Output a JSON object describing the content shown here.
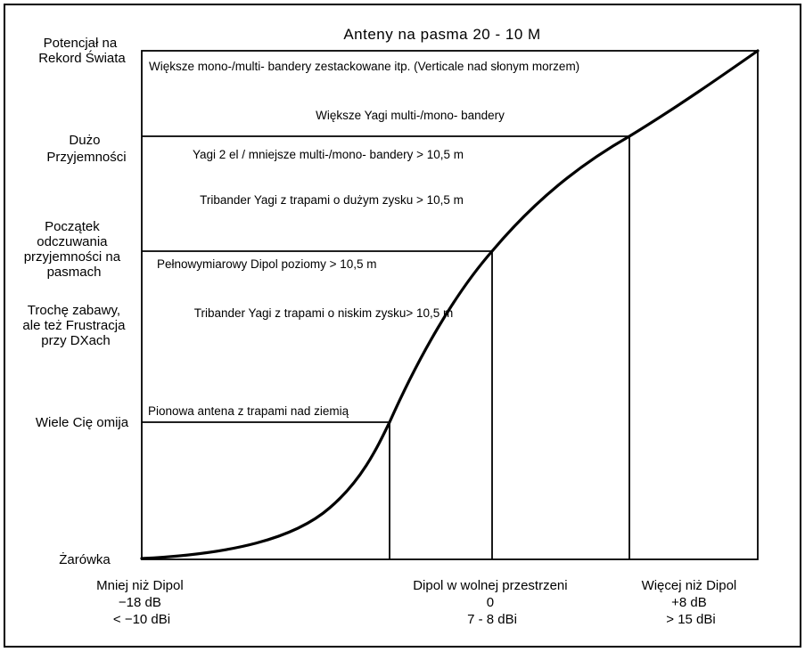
{
  "title": "Anteny na pasma 20 - 10 M",
  "y_levels": [
    {
      "lines": [
        "Potencjał na",
        "Rekord Świata"
      ]
    },
    {
      "lines": [
        "Dużo",
        "Przyjemności"
      ]
    },
    {
      "lines": [
        "Początek",
        "odczuwania",
        "przyjemności na",
        "pasmach"
      ]
    },
    {
      "lines": [
        "Trochę zabawy,",
        "ale też Frustracja",
        "przy DXach"
      ]
    },
    {
      "lines": [
        "Wiele Cię omija"
      ]
    },
    {
      "lines": [
        "Żarówka"
      ]
    }
  ],
  "x_levels": [
    {
      "lines": [
        "Mniej niż Dipol",
        "−18 dB",
        "< −10 dBi"
      ]
    },
    {
      "lines": [
        "Dipol w wolnej przestrzeni",
        "0",
        "7 - 8 dBi"
      ]
    },
    {
      "lines": [
        "Więcej niż Dipol",
        "+8 dB",
        "> 15 dBi"
      ]
    }
  ],
  "antenna_labels": [
    "Większe mono-/multi- bandery zestackowane itp. (Verticale nad słonym morzem)",
    "Większe Yagi multi-/mono- bandery",
    "Yagi 2 el / mniejsze multi-/mono- bandery > 10,5 m",
    "Tribander Yagi z trapami o dużym zysku > 10,5 m",
    "Pełnowymiarowy Dipol poziomy > 10,5 m",
    "Tribander Yagi z trapami o niskim zysku> 10,5 m",
    "Pionowa antena z trapami nad ziemią"
  ]
}
